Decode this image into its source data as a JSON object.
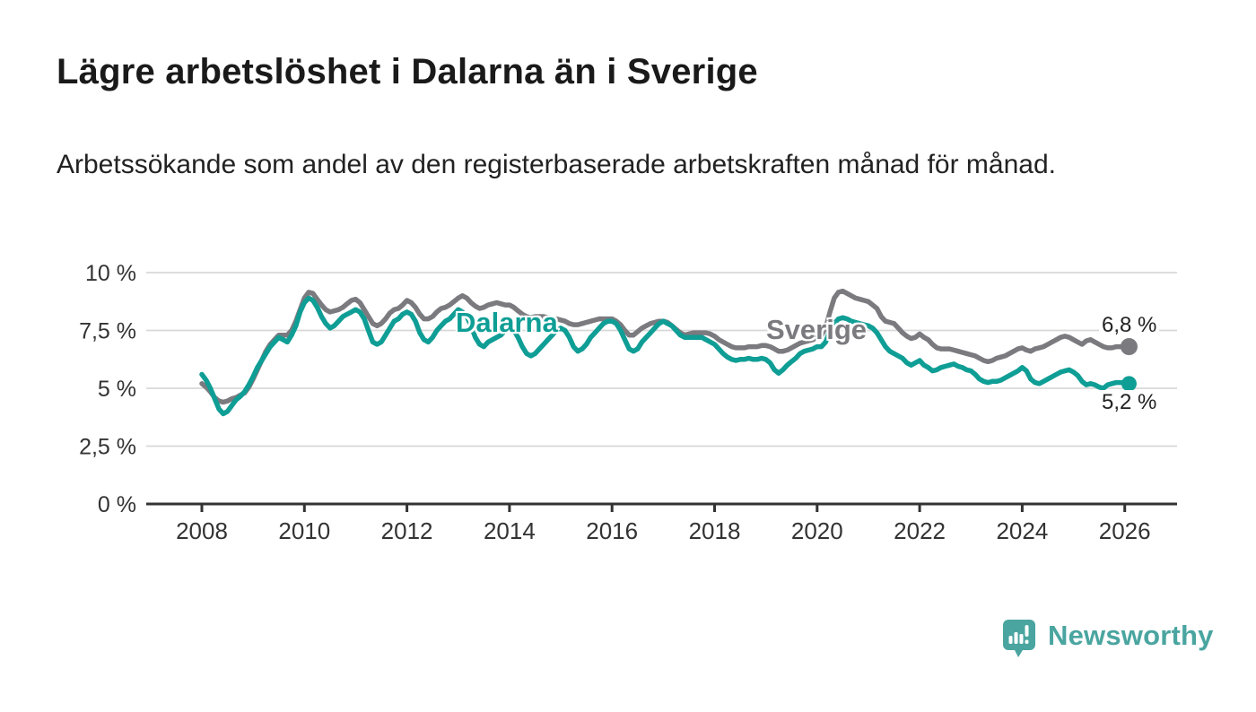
{
  "header": {
    "title": "Lägre arbetslöshet i Dalarna än i Sverige",
    "subtitle": "Arbetssökande som andel av den registerbaserade arbetskraften månad för månad."
  },
  "colors": {
    "dalarna_teal": "#0f9e95",
    "sverige_gray": "#7a7a7f",
    "gridline": "#d8d8d8",
    "axis": "#333333",
    "title_text": "#1a1a1a",
    "brand_teal": "#4aa5a0"
  },
  "chart_data": {
    "type": "line",
    "interval": "monthly",
    "x_start": "2008-01",
    "x_end": "2026-02",
    "unit": "%",
    "grid": "horizontal",
    "y_axis": {
      "min": 0,
      "max": 10,
      "ticks": [
        {
          "value": 10,
          "label": "10 %"
        },
        {
          "value": 7.5,
          "label": "7,5 %"
        },
        {
          "value": 5,
          "label": "5 %"
        },
        {
          "value": 2.5,
          "label": "2,5 %"
        },
        {
          "value": 0,
          "label": "0 %"
        }
      ]
    },
    "x_axis": {
      "ticks": [
        {
          "year": 2008,
          "label": "2008"
        },
        {
          "year": 2010,
          "label": "2010"
        },
        {
          "year": 2012,
          "label": "2012"
        },
        {
          "year": 2014,
          "label": "2014"
        },
        {
          "year": 2016,
          "label": "2016"
        },
        {
          "year": 2018,
          "label": "2018"
        },
        {
          "year": 2020,
          "label": "2020"
        },
        {
          "year": 2022,
          "label": "2022"
        },
        {
          "year": 2024,
          "label": "2024"
        },
        {
          "year": 2026,
          "label": "2026"
        }
      ]
    },
    "series": [
      {
        "name": "Dalarna",
        "color": "#0f9e95",
        "end_value": 5.2,
        "end_label": "5,2 %",
        "values": [
          5.6,
          5.35,
          5.0,
          4.55,
          4.1,
          3.9,
          4.0,
          4.25,
          4.5,
          4.65,
          4.85,
          5.15,
          5.5,
          5.9,
          6.2,
          6.5,
          6.8,
          7.0,
          7.2,
          7.1,
          7.0,
          7.3,
          7.7,
          8.3,
          8.7,
          8.9,
          8.8,
          8.5,
          8.1,
          7.8,
          7.6,
          7.7,
          7.9,
          8.1,
          8.2,
          8.3,
          8.4,
          8.3,
          8.0,
          7.5,
          7.0,
          6.9,
          7.0,
          7.3,
          7.6,
          7.9,
          8.0,
          8.2,
          8.3,
          8.2,
          7.9,
          7.4,
          7.1,
          7.0,
          7.2,
          7.5,
          7.7,
          7.9,
          8.0,
          8.2,
          8.4,
          8.3,
          8.1,
          7.7,
          7.2,
          6.9,
          6.8,
          7.0,
          7.1,
          7.2,
          7.3,
          7.5,
          7.6,
          7.5,
          7.2,
          6.8,
          6.5,
          6.4,
          6.5,
          6.7,
          6.9,
          7.1,
          7.3,
          7.5,
          7.6,
          7.5,
          7.2,
          6.8,
          6.6,
          6.7,
          6.9,
          7.2,
          7.4,
          7.6,
          7.8,
          7.9,
          7.9,
          7.8,
          7.5,
          7.1,
          6.7,
          6.6,
          6.7,
          7.0,
          7.2,
          7.4,
          7.6,
          7.8,
          7.9,
          7.8,
          7.7,
          7.5,
          7.3,
          7.2,
          7.2,
          7.2,
          7.2,
          7.2,
          7.1,
          7.0,
          6.9,
          6.7,
          6.5,
          6.35,
          6.25,
          6.2,
          6.25,
          6.25,
          6.3,
          6.25,
          6.25,
          6.3,
          6.25,
          6.1,
          5.8,
          5.65,
          5.8,
          6.0,
          6.15,
          6.3,
          6.5,
          6.6,
          6.65,
          6.7,
          6.8,
          6.8,
          7.0,
          7.5,
          7.8,
          8.0,
          8.05,
          8.0,
          7.9,
          7.85,
          7.8,
          7.75,
          7.7,
          7.6,
          7.4,
          7.1,
          6.8,
          6.6,
          6.5,
          6.4,
          6.3,
          6.1,
          6.0,
          6.1,
          6.2,
          6.0,
          5.9,
          5.75,
          5.8,
          5.9,
          5.95,
          6.0,
          6.05,
          5.95,
          5.9,
          5.8,
          5.75,
          5.6,
          5.4,
          5.3,
          5.25,
          5.3,
          5.3,
          5.35,
          5.45,
          5.55,
          5.65,
          5.75,
          5.9,
          5.75,
          5.4,
          5.25,
          5.2,
          5.3,
          5.4,
          5.5,
          5.6,
          5.7,
          5.75,
          5.8,
          5.7,
          5.55,
          5.3,
          5.15,
          5.2,
          5.15,
          5.05,
          5.0,
          5.15,
          5.2,
          5.25,
          5.25,
          5.25,
          5.2
        ]
      },
      {
        "name": "Sverige",
        "color": "#7a7a7f",
        "end_value": 6.8,
        "end_label": "6,8 %",
        "values": [
          5.2,
          5.05,
          4.85,
          4.6,
          4.45,
          4.4,
          4.45,
          4.55,
          4.6,
          4.7,
          4.8,
          5.05,
          5.4,
          5.8,
          6.2,
          6.6,
          6.9,
          7.1,
          7.3,
          7.3,
          7.3,
          7.5,
          7.9,
          8.4,
          8.9,
          9.15,
          9.1,
          8.85,
          8.6,
          8.4,
          8.3,
          8.35,
          8.4,
          8.5,
          8.65,
          8.8,
          8.85,
          8.7,
          8.4,
          8.1,
          7.8,
          7.7,
          7.8,
          8.0,
          8.25,
          8.4,
          8.45,
          8.6,
          8.8,
          8.7,
          8.5,
          8.2,
          8.0,
          8.0,
          8.1,
          8.3,
          8.45,
          8.5,
          8.6,
          8.75,
          8.9,
          9.0,
          8.9,
          8.7,
          8.55,
          8.45,
          8.5,
          8.6,
          8.65,
          8.7,
          8.65,
          8.6,
          8.6,
          8.5,
          8.35,
          8.2,
          8.1,
          8.05,
          8.1,
          8.1,
          8.1,
          8.05,
          8.0,
          8.0,
          7.95,
          7.9,
          7.8,
          7.75,
          7.75,
          7.8,
          7.85,
          7.9,
          7.95,
          8.0,
          8.0,
          8.0,
          8.0,
          7.9,
          7.75,
          7.5,
          7.3,
          7.3,
          7.45,
          7.6,
          7.7,
          7.8,
          7.85,
          7.9,
          7.9,
          7.85,
          7.7,
          7.55,
          7.4,
          7.3,
          7.35,
          7.4,
          7.4,
          7.4,
          7.4,
          7.35,
          7.25,
          7.1,
          7.0,
          6.9,
          6.8,
          6.75,
          6.75,
          6.75,
          6.8,
          6.8,
          6.8,
          6.85,
          6.85,
          6.8,
          6.7,
          6.6,
          6.6,
          6.65,
          6.75,
          6.85,
          6.95,
          7.0,
          7.05,
          7.1,
          7.2,
          7.3,
          7.6,
          8.3,
          8.9,
          9.15,
          9.2,
          9.1,
          9.0,
          8.9,
          8.85,
          8.8,
          8.75,
          8.6,
          8.45,
          8.1,
          7.9,
          7.85,
          7.8,
          7.6,
          7.4,
          7.25,
          7.15,
          7.2,
          7.35,
          7.2,
          7.1,
          6.9,
          6.75,
          6.7,
          6.7,
          6.7,
          6.65,
          6.6,
          6.55,
          6.5,
          6.45,
          6.4,
          6.3,
          6.2,
          6.15,
          6.2,
          6.3,
          6.35,
          6.4,
          6.5,
          6.6,
          6.7,
          6.75,
          6.65,
          6.6,
          6.7,
          6.75,
          6.8,
          6.9,
          7.0,
          7.1,
          7.2,
          7.25,
          7.2,
          7.1,
          7.0,
          6.9,
          7.05,
          7.1,
          7.0,
          6.9,
          6.8,
          6.75,
          6.75,
          6.8,
          6.8,
          6.8,
          6.8
        ]
      }
    ]
  },
  "footer": {
    "brand": "Newsworthy",
    "logo_icon": "speech-bubble-bar-chart-icon"
  }
}
